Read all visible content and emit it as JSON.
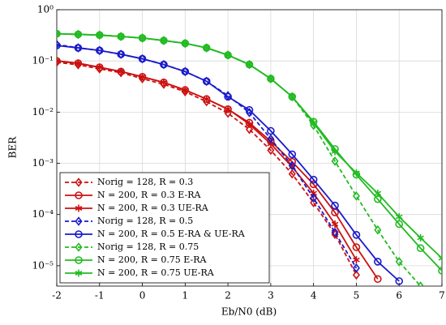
{
  "chart_data": {
    "type": "line",
    "xlabel": "Eb/N0 (dB)",
    "ylabel": "BER",
    "xlim": [
      -2,
      7
    ],
    "xticks": [
      -2,
      -1,
      0,
      1,
      2,
      3,
      4,
      5,
      6,
      7
    ],
    "ylim": [
      4e-06,
      1
    ],
    "log_y": true,
    "grid": true,
    "legend": "lower left",
    "yticks": [
      {
        "value": 1,
        "label": "10⁰"
      },
      {
        "value": 0.1,
        "label": "10⁻¹"
      },
      {
        "value": 0.01,
        "label": "10⁻²"
      },
      {
        "value": 0.001,
        "label": "10⁻³"
      },
      {
        "value": 0.0001,
        "label": "10⁻⁴"
      },
      {
        "value": 1e-05,
        "label": "10⁻⁵"
      }
    ],
    "series": [
      {
        "name": "Norig = 128, R = 0.3",
        "color": "#cc1111",
        "dashed": true,
        "marker": "diamond",
        "x": [
          -2,
          -1.5,
          -1,
          -0.5,
          0,
          0.5,
          1,
          1.5,
          2,
          2.5,
          3,
          3.5,
          4,
          4.5,
          5
        ],
        "values": [
          0.094,
          0.084,
          0.07,
          0.059,
          0.045,
          0.035,
          0.025,
          0.016,
          0.0095,
          0.0046,
          0.0018,
          0.00062,
          0.00017,
          4.1e-05,
          6.6e-06
        ]
      },
      {
        "name": "N = 200, R = 0.3 E-RA",
        "color": "#cc1111",
        "dashed": false,
        "marker": "circle",
        "x": [
          -2,
          -1.5,
          -1,
          -0.5,
          0,
          0.5,
          1,
          1.5,
          2,
          2.5,
          3,
          3.5,
          4,
          4.5,
          5,
          5.5
        ],
        "values": [
          0.1,
          0.09,
          0.075,
          0.062,
          0.049,
          0.038,
          0.027,
          0.018,
          0.0114,
          0.0062,
          0.0027,
          0.00107,
          0.00039,
          0.00011,
          2.3e-05,
          5.5e-06
        ]
      },
      {
        "name": "N = 200, R = 0.3 UE-RA",
        "color": "#cc1111",
        "dashed": false,
        "marker": "star",
        "x": [
          -2,
          -1.5,
          -1,
          -0.5,
          0,
          0.5,
          1,
          1.5,
          2,
          2.5,
          3,
          3.5,
          4,
          4.5,
          5
        ],
        "values": [
          0.1,
          0.09,
          0.075,
          0.062,
          0.049,
          0.038,
          0.027,
          0.018,
          0.0115,
          0.0058,
          0.0024,
          0.00085,
          0.00026,
          6.5e-05,
          1.3e-05
        ]
      },
      {
        "name": "Norig = 128, R = 0.5",
        "color": "#1a1acc",
        "dashed": true,
        "marker": "diamond",
        "x": [
          -2,
          -1.5,
          -1,
          -0.5,
          0,
          0.5,
          1,
          1.5,
          2,
          2.5,
          3,
          3.5,
          4,
          4.5,
          5
        ],
        "values": [
          0.21,
          0.18,
          0.16,
          0.135,
          0.11,
          0.085,
          0.062,
          0.04,
          0.021,
          0.0098,
          0.003,
          0.0009,
          0.00021,
          4.5e-05,
          9e-06
        ]
      },
      {
        "name": "N = 200, R = 0.5 E-RA & UE-RA",
        "color": "#1a1acc",
        "dashed": false,
        "marker": "circle",
        "x": [
          -2,
          -1.5,
          -1,
          -0.5,
          0,
          0.5,
          1,
          1.5,
          2,
          2.5,
          3,
          3.5,
          4,
          4.5,
          5,
          5.5,
          6
        ],
        "values": [
          0.2,
          0.18,
          0.16,
          0.135,
          0.11,
          0.085,
          0.062,
          0.04,
          0.02,
          0.011,
          0.0043,
          0.0015,
          0.00048,
          0.00015,
          4e-05,
          1.2e-05,
          5e-06
        ]
      },
      {
        "name": "Norig = 128, R = 0.75",
        "color": "#22bb22",
        "dashed": true,
        "marker": "diamond",
        "x": [
          -2,
          -1.5,
          -1,
          -0.5,
          0,
          0.5,
          1,
          1.5,
          2,
          2.5,
          3,
          3.5,
          4,
          4.5,
          5,
          5.5,
          6,
          6.5
        ],
        "values": [
          0.34,
          0.33,
          0.32,
          0.3,
          0.28,
          0.25,
          0.22,
          0.18,
          0.13,
          0.085,
          0.045,
          0.02,
          0.0055,
          0.0011,
          0.00023,
          5e-05,
          1.2e-05,
          4e-06
        ]
      },
      {
        "name": "N = 200, R = 0.75 E-RA",
        "color": "#22bb22",
        "dashed": false,
        "marker": "circle",
        "x": [
          -2,
          -1.5,
          -1,
          -0.5,
          0,
          0.5,
          1,
          1.5,
          2,
          2.5,
          3,
          3.5,
          4,
          4.5,
          5,
          5.5,
          6,
          6.5,
          7
        ],
        "values": [
          0.34,
          0.33,
          0.32,
          0.3,
          0.28,
          0.25,
          0.22,
          0.18,
          0.13,
          0.085,
          0.045,
          0.02,
          0.0065,
          0.0019,
          0.0006,
          0.0002,
          6.5e-05,
          2.2e-05,
          8e-06
        ]
      },
      {
        "name": "N = 200, R = 0.75 UE-RA",
        "color": "#22bb22",
        "dashed": false,
        "marker": "star",
        "x": [
          -2,
          -1.5,
          -1,
          -0.5,
          0,
          0.5,
          1,
          1.5,
          2,
          2.5,
          3,
          3.5,
          4,
          4.5,
          5,
          5.5,
          6,
          6.5,
          7
        ],
        "values": [
          0.34,
          0.33,
          0.32,
          0.3,
          0.28,
          0.25,
          0.22,
          0.18,
          0.13,
          0.085,
          0.045,
          0.02,
          0.0062,
          0.0017,
          0.00065,
          0.00026,
          9e-05,
          3.5e-05,
          1.4e-05
        ]
      }
    ]
  }
}
